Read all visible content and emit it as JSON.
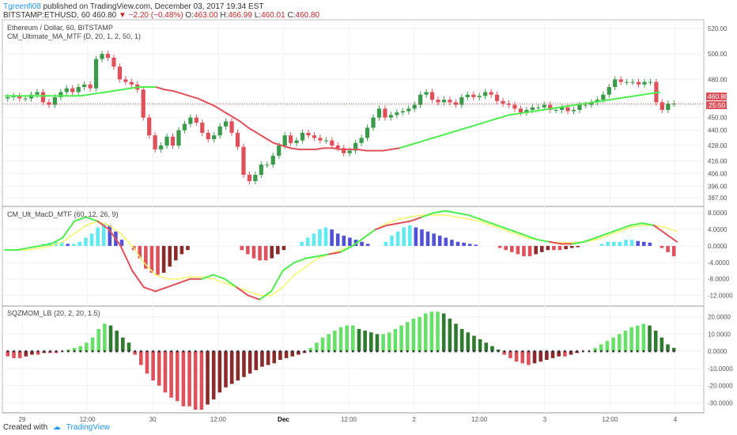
{
  "header": {
    "username": "Tgreenfi08",
    "published": "published on TradingView.com, December 03, 2017 19:34 EST",
    "symbol": "BITSTAMP:ETHUSD, 60",
    "last": "460.80",
    "change": "−2.20 (−0.48%)",
    "o_label": "O:",
    "o_value": "463.00",
    "h_label": "H:",
    "h_value": "466.99",
    "l_label": "L:",
    "l_value": "460.01",
    "c_label": "C:",
    "c_value": "460.80"
  },
  "panes": {
    "main": {
      "label1": "Ethereum / Dollar, 60, BITSTAMP",
      "label2": "CM_Ultimate_MA_MTF (D, 20, 1, 2, 50, 1)"
    },
    "macd": {
      "label": "CM_Ult_MacD_MTF (60, 12, 26, 9)"
    },
    "sqz": {
      "label": "SQZMOM_LB (20, 2, 20, 1.5)"
    }
  },
  "badges": {
    "price": "460.80",
    "countdown": "25:50"
  },
  "footer": {
    "created_with": "Created with",
    "brand": "TradingView"
  },
  "colors": {
    "up": "#26a69a",
    "up_candle": "#3a9a4a",
    "down": "#e0505a",
    "ma_green": "#4ded4d",
    "ma_red": "#e0505a",
    "signal": "#f5f56a",
    "badge": "#e0505a"
  },
  "chart_data": [
    {
      "type": "candlestick",
      "title": "Ethereum / Dollar, 60, BITSTAMP",
      "ylim": [
        382,
        525
      ],
      "y_ticks": [
        "520.00",
        "500.00",
        "480.00",
        "460.00",
        "450.00",
        "440.00",
        "428.00",
        "416.00",
        "406.00",
        "396.00",
        "387.00"
      ],
      "x_ticks": [
        "29",
        "12:00",
        "30",
        "12:00",
        "Dec",
        "12:00",
        "2",
        "12:00",
        "3",
        "12:00",
        "4"
      ],
      "price_line": 460.8,
      "closes": [
        466,
        467,
        465,
        465,
        468,
        470,
        462,
        460,
        466,
        470,
        473,
        470,
        474,
        476,
        473,
        496,
        500,
        497,
        490,
        480,
        478,
        476,
        472,
        450,
        436,
        425,
        428,
        435,
        428,
        440,
        445,
        450,
        446,
        438,
        433,
        436,
        443,
        447,
        438,
        427,
        405,
        400,
        405,
        413,
        413,
        420,
        428,
        436,
        430,
        432,
        438,
        436,
        434,
        432,
        432,
        428,
        426,
        422,
        424,
        430,
        434,
        442,
        450,
        457,
        450,
        452,
        454,
        455,
        457,
        460,
        468,
        470,
        464,
        462,
        464,
        462,
        460,
        466,
        468,
        466,
        467,
        470,
        468,
        463,
        461,
        460,
        457,
        454,
        456,
        458,
        458,
        460,
        456,
        456,
        458,
        455,
        456,
        460,
        460,
        462,
        464,
        468,
        474,
        480,
        478,
        478,
        478,
        476,
        478,
        478,
        462,
        456,
        461,
        461
      ],
      "ma_series": [
        {
          "name": "",
          "color": "#4ded4d",
          "values": [
            467,
            467,
            467,
            467,
            467,
            467,
            467,
            467,
            467,
            467,
            468,
            469,
            470,
            471,
            472,
            473,
            474,
            474,
            474
          ]
        },
        {
          "name": "",
          "color": "#e0505a",
          "values": [
            474,
            472,
            471,
            469,
            467,
            465,
            462,
            459,
            455,
            451,
            447,
            442,
            438,
            434,
            430,
            428,
            426,
            425,
            425,
            425,
            426,
            426,
            425,
            425,
            425,
            424,
            424,
            424,
            425,
            426
          ]
        },
        {
          "name": "",
          "color": "#4ded4d",
          "values": [
            426,
            428,
            430,
            432,
            434,
            436,
            438,
            440,
            442,
            444,
            446,
            448,
            450,
            452,
            453,
            454,
            455,
            456,
            457,
            458,
            459,
            460,
            461,
            462,
            463,
            464,
            465,
            466,
            467,
            468,
            469,
            470
          ]
        }
      ]
    },
    {
      "type": "bar",
      "title": "CM_Ult_MacD_MTF (60, 12, 26, 9)",
      "ylim": [
        -14,
        9
      ],
      "y_ticks": [
        "8.0000",
        "4.0000",
        "0.0000",
        "-4.0000",
        "-8.0000",
        "-12.0000"
      ],
      "histogram": [
        0,
        0,
        0,
        0,
        0,
        0,
        0.5,
        0.8,
        1.0,
        1.0,
        0.5,
        0.5,
        1.0,
        2.0,
        3.0,
        4.5,
        5.5,
        5.0,
        3.5,
        1.5,
        0,
        -1.0,
        -3.0,
        -5.5,
        -6.5,
        -7.0,
        -6.5,
        -5.0,
        -3.5,
        -2.0,
        -1.0,
        0,
        0,
        0,
        0,
        0,
        0,
        0,
        0,
        -1.0,
        -2.0,
        -3.0,
        -3.5,
        -3.5,
        -3.0,
        -2.0,
        -1.0,
        0,
        0,
        1.0,
        2.0,
        3.0,
        4.0,
        4.5,
        4.0,
        3.0,
        2.5,
        2.0,
        1.5,
        1.0,
        0.5,
        0,
        0,
        1.0,
        2.5,
        3.5,
        4.5,
        5.0,
        4.5,
        4.0,
        3.5,
        3.0,
        2.5,
        2.0,
        1.5,
        1.0,
        0.8,
        0.5,
        0.3,
        0,
        0,
        0,
        -0.5,
        -1.0,
        -1.5,
        -2.0,
        -2.5,
        -2.5,
        -2.0,
        -1.5,
        -1.0,
        -1.0,
        -1.0,
        -0.8,
        -0.5,
        -0.3,
        0,
        0,
        0,
        0.5,
        1.0,
        1.0,
        1.0,
        1.5,
        1.5,
        1.2,
        1.0,
        0.8,
        0,
        -0.5,
        -1.5,
        -2.5
      ],
      "macd": [
        -1,
        -1,
        -0.5,
        0,
        0.5,
        2,
        6,
        7,
        6,
        4,
        0,
        -6,
        -10,
        -11,
        -10,
        -9,
        -8,
        -8,
        -7,
        -8,
        -10,
        -12,
        -13,
        -11,
        -6,
        -4,
        -3,
        -2.5,
        -2,
        -1.5,
        0,
        2,
        4,
        5,
        5.5,
        6,
        7,
        8,
        8.5,
        8,
        7.5,
        6.5,
        5.5,
        4.5,
        3.5,
        2.5,
        1.5,
        1,
        0.5,
        0.5,
        1,
        2,
        3,
        4,
        5,
        5.5,
        5,
        3,
        1
      ],
      "signal": [
        -1,
        -1,
        -1,
        -0.5,
        0,
        1,
        3,
        5,
        6,
        5,
        3,
        0,
        -4,
        -7,
        -8,
        -8,
        -7.5,
        -7.5,
        -8,
        -9,
        -10,
        -11,
        -12,
        -12,
        -10,
        -7,
        -5,
        -3,
        -2,
        -1,
        0,
        2,
        4,
        5.5,
        6.5,
        7,
        7.5,
        7.5,
        7.5,
        7,
        6.5,
        6,
        5,
        4,
        3,
        2,
        1.5,
        1,
        0.8,
        0.8,
        1,
        1.5,
        2.5,
        3.5,
        4.5,
        5,
        5,
        4.5,
        3.5
      ]
    },
    {
      "type": "bar",
      "title": "SQZMOM_LB (20, 2, 20, 1.5)",
      "ylim": [
        -34,
        24
      ],
      "y_ticks": [
        "20.0000",
        "10.0000",
        "0.0000",
        "-10.0000",
        "-20.0000",
        "-30.0000"
      ],
      "values": [
        -3,
        -4,
        -4,
        -3,
        -2,
        -2,
        -1,
        -1,
        -1,
        0,
        1,
        2,
        3,
        5,
        8,
        13,
        16,
        15,
        12,
        8,
        5,
        -2,
        -8,
        -13,
        -17,
        -20,
        -24,
        -27,
        -29,
        -32,
        -32,
        -34,
        -34,
        -31,
        -28,
        -24,
        -21,
        -19,
        -17,
        -15,
        -13,
        -11,
        -9,
        -8,
        -7,
        -5,
        -4,
        -3,
        -2,
        -1,
        2,
        5,
        8,
        10,
        12,
        14,
        15,
        15,
        13,
        12,
        11,
        10,
        10,
        11,
        13,
        15,
        17,
        19,
        20,
        22,
        23,
        23,
        22,
        19,
        16,
        13,
        11,
        9,
        7,
        5,
        3,
        1,
        -2,
        -4,
        -6,
        -7,
        -8,
        -7,
        -6,
        -5,
        -4,
        -3,
        -3,
        -2,
        -1,
        0,
        0,
        2,
        4,
        6,
        8,
        10,
        12,
        14,
        15,
        16,
        15,
        12,
        8,
        4,
        2
      ]
    }
  ]
}
